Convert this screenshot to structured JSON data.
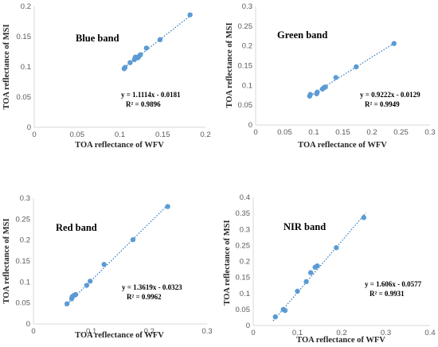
{
  "colors": {
    "marker": "#5B9BD5",
    "trendline": "#2E75B6",
    "axis": "#D9D9D9",
    "text": "#262626"
  },
  "chart_data": [
    {
      "type": "scatter",
      "annotation": "Blue band",
      "xlabel": "TOA reflectance of WFV",
      "ylabel": "TOA reflectance of MSI",
      "xlim": [
        0,
        0.2
      ],
      "ylim": [
        0,
        0.2
      ],
      "xticks": [
        "0",
        "0.05",
        "0.1",
        "0.15",
        "0.2"
      ],
      "yticks": [
        "0",
        "0.05",
        "0.1",
        "0.15",
        "0.2"
      ],
      "grid": false,
      "equation": "y = 1.1114x - 0.0181",
      "r2": "R² = 0.9896",
      "trendline": {
        "slope": 1.1114,
        "intercept": -0.0181,
        "x_range": [
          0.103,
          0.183
        ]
      },
      "points": [
        [
          0.105,
          0.097
        ],
        [
          0.106,
          0.099
        ],
        [
          0.112,
          0.107
        ],
        [
          0.117,
          0.112
        ],
        [
          0.118,
          0.116
        ],
        [
          0.121,
          0.115
        ],
        [
          0.122,
          0.117
        ],
        [
          0.124,
          0.12
        ],
        [
          0.131,
          0.131
        ],
        [
          0.147,
          0.145
        ],
        [
          0.182,
          0.186
        ]
      ]
    },
    {
      "type": "scatter",
      "annotation": "Green band",
      "xlabel": "TOA reflectance of WFV",
      "ylabel": "TOA reflectance of MSI",
      "xlim": [
        0,
        0.3
      ],
      "ylim": [
        0,
        0.3
      ],
      "xticks": [
        "0",
        "0.05",
        "0.1",
        "0.15",
        "0.2",
        "0.25",
        "0.3"
      ],
      "yticks": [
        "0",
        "0.05",
        "0.1",
        "0.15",
        "0.2",
        "0.25",
        "0.3"
      ],
      "grid": false,
      "equation": "y = 0.9222x - 0.0129",
      "r2": "R² = 0.9949",
      "trendline": {
        "slope": 0.9222,
        "intercept": -0.0129,
        "x_range": [
          0.09,
          0.24
        ]
      },
      "points": [
        [
          0.093,
          0.073
        ],
        [
          0.094,
          0.077
        ],
        [
          0.105,
          0.079
        ],
        [
          0.106,
          0.083
        ],
        [
          0.115,
          0.091
        ],
        [
          0.118,
          0.095
        ],
        [
          0.12,
          0.096
        ],
        [
          0.138,
          0.12
        ],
        [
          0.173,
          0.147
        ],
        [
          0.238,
          0.206
        ]
      ]
    },
    {
      "type": "scatter",
      "annotation": "Red band",
      "xlabel": "TOA reflectance of WFV",
      "ylabel": "TOA reflectance of MSI",
      "xlim": [
        0,
        0.3
      ],
      "ylim": [
        0,
        0.3
      ],
      "xticks": [
        "0",
        "0.1",
        "0.2",
        "0.3"
      ],
      "yticks": [
        "0",
        "0.05",
        "0.1",
        "0.15",
        "0.2",
        "0.25",
        "0.3"
      ],
      "grid": false,
      "equation": "y = 1.3619x - 0.0323",
      "r2": "R² = 0.9962",
      "trendline": {
        "slope": 1.3619,
        "intercept": -0.0323,
        "x_range": [
          0.055,
          0.232
        ]
      },
      "points": [
        [
          0.058,
          0.048
        ],
        [
          0.066,
          0.06
        ],
        [
          0.067,
          0.065
        ],
        [
          0.07,
          0.068
        ],
        [
          0.073,
          0.07
        ],
        [
          0.092,
          0.092
        ],
        [
          0.098,
          0.102
        ],
        [
          0.122,
          0.142
        ],
        [
          0.172,
          0.201
        ],
        [
          0.232,
          0.28
        ]
      ]
    },
    {
      "type": "scatter",
      "annotation": "NIR band",
      "xlabel": "TOA reflectance of WFV",
      "ylabel": "TOA reflectance of MSI",
      "xlim": [
        0,
        0.4
      ],
      "ylim": [
        0,
        0.4
      ],
      "xticks": [
        "0",
        "0.1",
        "0.2",
        "0.3",
        "0.4"
      ],
      "yticks": [
        "0",
        "0.05",
        "0.1",
        "0.15",
        "0.2",
        "0.25",
        "0.3",
        "0.35",
        "0.4"
      ],
      "grid": false,
      "equation": "y = 1.606x - 0.0577",
      "r2": "R² = 0.9931",
      "trendline": {
        "slope": 1.606,
        "intercept": -0.0577,
        "x_range": [
          0.045,
          0.255
        ]
      },
      "points": [
        [
          0.05,
          0.027
        ],
        [
          0.068,
          0.05
        ],
        [
          0.072,
          0.047
        ],
        [
          0.1,
          0.107
        ],
        [
          0.12,
          0.137
        ],
        [
          0.13,
          0.165
        ],
        [
          0.14,
          0.182
        ],
        [
          0.145,
          0.186
        ],
        [
          0.188,
          0.243
        ],
        [
          0.25,
          0.337
        ]
      ]
    }
  ]
}
